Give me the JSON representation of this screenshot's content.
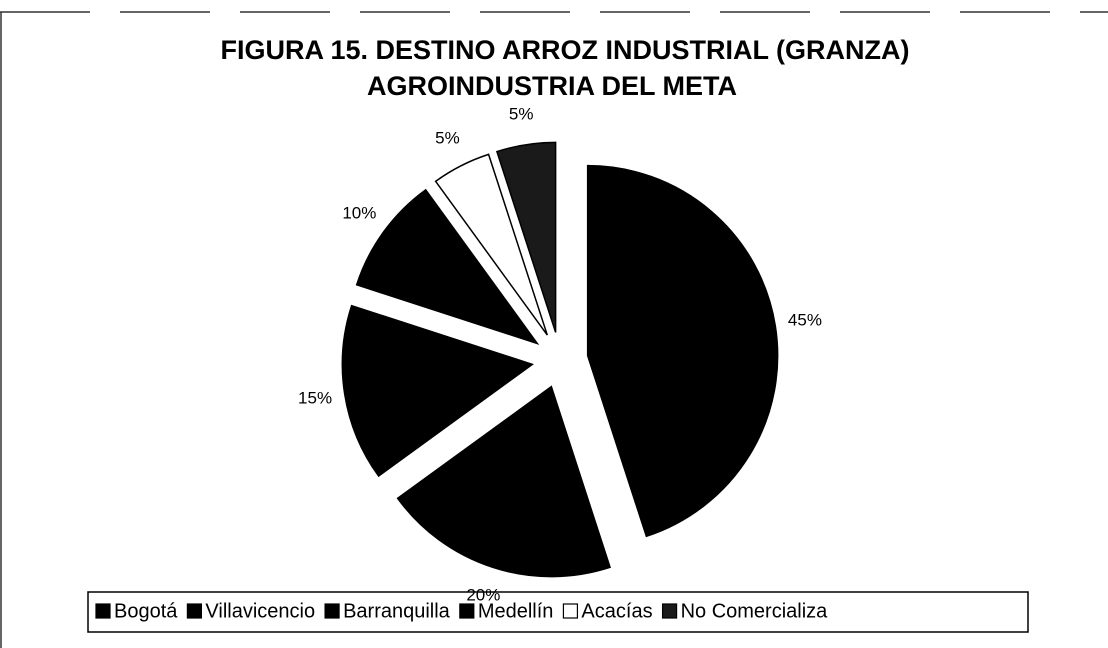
{
  "chart_data": {
    "type": "pie",
    "title": "FIGURA 15. DESTINO ARROZ INDUSTRIAL (GRANZA)",
    "subtitle": "AGROINDUSTRIA DEL META",
    "categories": [
      "Bogotá",
      "Villavicencio",
      "Barranquilla",
      "Medellín",
      "Acacías",
      "No Comercializa"
    ],
    "values": [
      45,
      20,
      15,
      10,
      5,
      5
    ],
    "value_labels": [
      "45%",
      "20%",
      "15%",
      "10%",
      "5%",
      "5%"
    ],
    "colors": [
      "#000000",
      "#000000",
      "#000000",
      "#000000",
      "#ffffff",
      "#1a1a1a"
    ],
    "legend": "bottom"
  }
}
